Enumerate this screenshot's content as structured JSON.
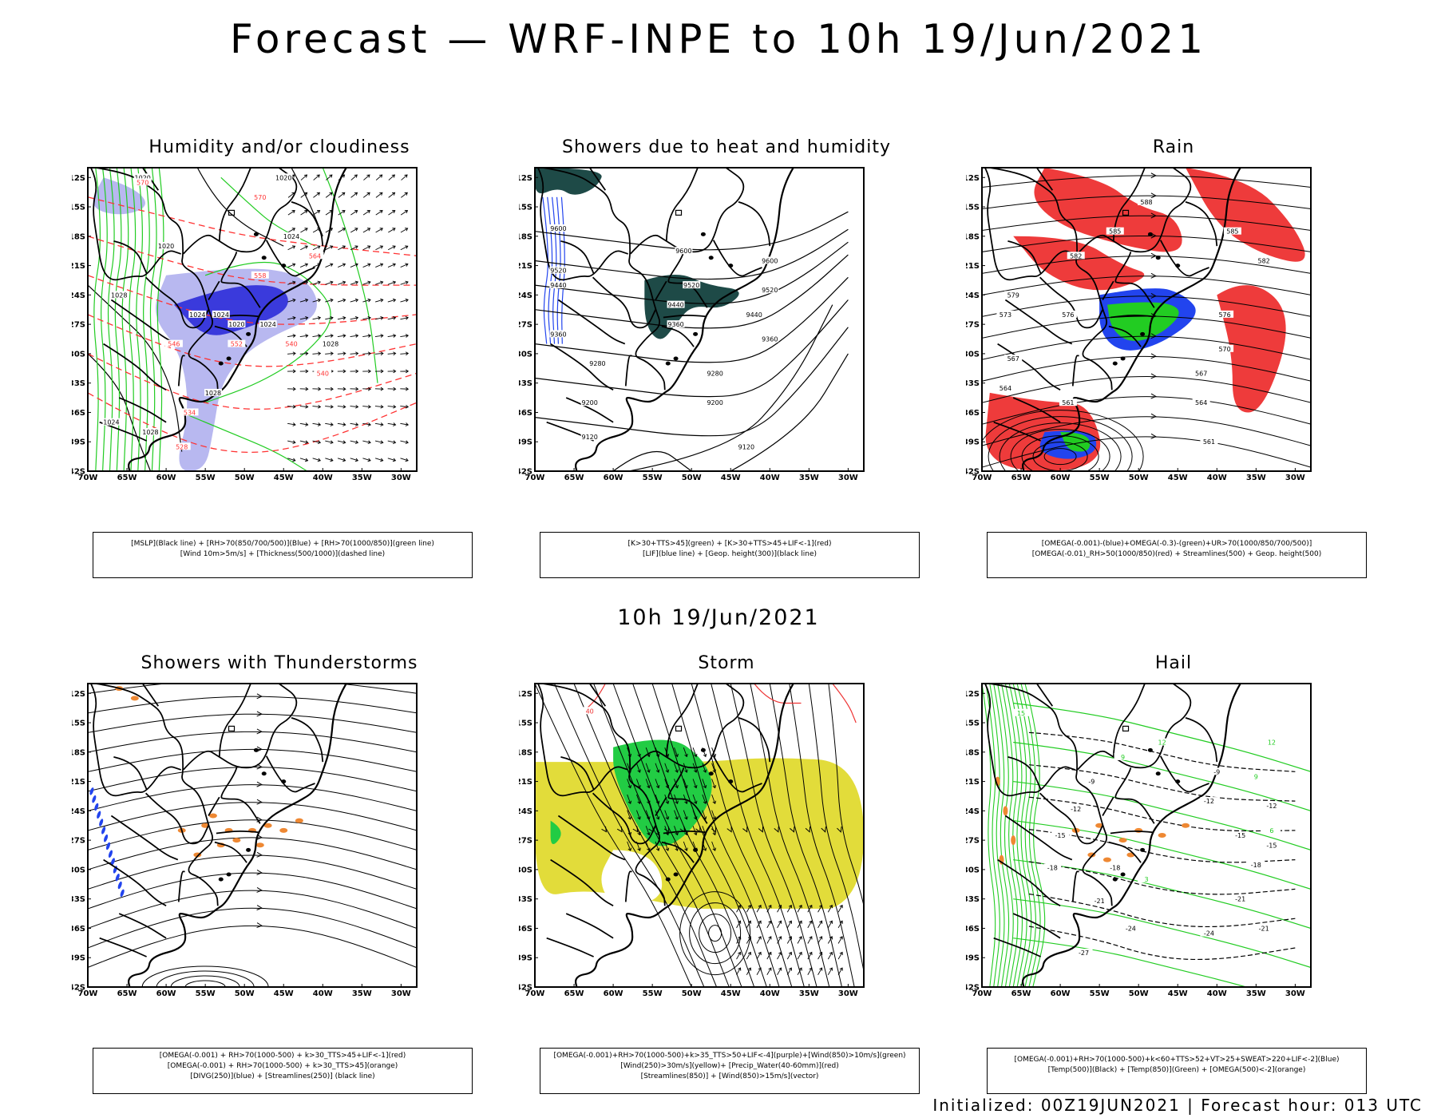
{
  "title": "Forecast — WRF-INPE to 10h 19/Jun/2021",
  "subtitle": "10h 19/Jun/2021",
  "footer": "Initialized: 00Z19JUN2021 | Forecast hour: 013 UTC",
  "axes": {
    "lat_labels": [
      "12S",
      "15S",
      "18S",
      "21S",
      "24S",
      "27S",
      "30S",
      "33S",
      "36S",
      "39S",
      "42S"
    ],
    "lon_labels": [
      "70W",
      "65W",
      "60W",
      "55W",
      "50W",
      "45W",
      "40W",
      "35W",
      "30W"
    ]
  },
  "panels": [
    {
      "title": "Humidity and/or cloudiness",
      "legend": [
        "[MSLP](Black line) + [RH>70(850/700/500)](Blue) + [RH>70(1000/850)](green line)",
        "[Wind 10m>5m/s] + [Thickness(500/1000)](dashed line)"
      ],
      "colors": {
        "fill1": "#b8b8f0",
        "fill2": "#3a3adc",
        "green": "#22cc22",
        "red": "#ff3333"
      },
      "contour_labels": [
        "1020",
        "1020",
        "1024",
        "1020",
        "1024",
        "1028",
        "1024",
        "1020",
        "1024",
        "1028",
        "1028",
        "1024",
        "1028",
        "570",
        "570",
        "564",
        "558",
        "552",
        "546",
        "540",
        "540",
        "534",
        "528"
      ]
    },
    {
      "title": "Showers due to heat and humidity",
      "legend": [
        "[K>30+TTS>45](green) + [K>30+TTS>45+LIF<-1](red)",
        "[LIF](blue line) + [Geop. height(300)](black line)"
      ],
      "colors": {
        "fill": "#1e4a47",
        "blue": "#2244ee"
      },
      "contour_labels": [
        "9600",
        "9600",
        "9600",
        "9520",
        "9520",
        "9520",
        "9440",
        "9440",
        "9440",
        "9360",
        "9360",
        "9360",
        "9280",
        "9280",
        "9200",
        "9200",
        "9120",
        "9120"
      ]
    },
    {
      "title": "Rain",
      "legend": [
        "[OMEGA(-0.001)-(blue)+OMEGA(-0.3)-(green)+UR>70(1000/850/700/500)]",
        "[OMEGA(-0.01)_RH>50(1000/850)(red) + Streamlines(500) + Geop. height(500)"
      ],
      "colors": {
        "red": "#ee3b3b",
        "blue": "#2244ee",
        "green": "#22cc22"
      },
      "contour_labels": [
        "588",
        "585",
        "585",
        "582",
        "582",
        "579",
        "576",
        "576",
        "573",
        "570",
        "567",
        "567",
        "564",
        "564",
        "561",
        "561"
      ]
    },
    {
      "title": "Showers with Thunderstorms",
      "legend": [
        "[OMEGA(-0.001) + RH>70(1000-500) + k>30_TTS>45+LIF<-1](red)",
        "[OMEGA(-0.001) + RH>70(1000-500) + k>30_TTS>45](orange)",
        "[DIVG(250)](blue) + [Streamlines(250)] (black line)"
      ],
      "colors": {
        "orange": "#ee8833",
        "blue": "#2244ee"
      }
    },
    {
      "title": "Storm",
      "legend": [
        "[OMEGA(-0.001)+RH>70(1000-500)+k>35_TTS>50+LIF<-4](purple)+[Wind(850)>10m/s](green)",
        "[Wind(250)>30m/s](yellow)+ [Precip_Water(40-60mm)](red)",
        "[Streamlines(850)] + [Wind(850)>15m/s](vector)"
      ],
      "colors": {
        "yellow": "#e2dc3a",
        "green": "#22cc44",
        "red": "#ee3333"
      },
      "contour_labels": [
        "40"
      ]
    },
    {
      "title": "Hail",
      "legend": [
        "[OMEGA(-0.001)+RH>70(1000-500)+k<60+TTS>52+VT>25+SWEAT>220+LIF<-2](Blue)",
        "[Temp(500)](Black) + [Temp(850)](Green) + [OMEGA(500)<-2](orange)"
      ],
      "colors": {
        "green": "#22cc22",
        "orange": "#ee8833"
      },
      "contour_labels": [
        "-9",
        "-9",
        "-12",
        "-12",
        "-12",
        "-15",
        "-15",
        "-15",
        "-18",
        "-18",
        "-18",
        "-21",
        "-21",
        "-21",
        "-24",
        "-24",
        "-27",
        "15",
        "12",
        "12",
        "9",
        "9",
        "6",
        "3"
      ]
    }
  ]
}
